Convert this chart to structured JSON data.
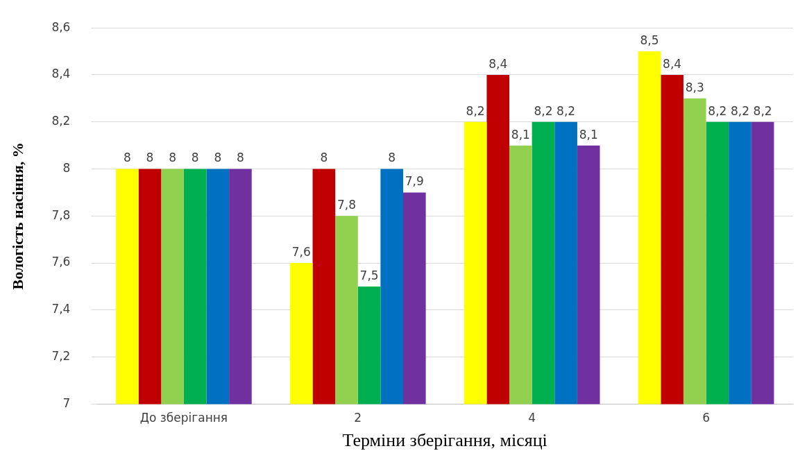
{
  "chart_data": {
    "type": "bar",
    "xlabel": "Терміни зберігання, місяці",
    "ylabel": "Вологість насіння, %",
    "categories": [
      "До зберігання",
      "2",
      "4",
      "6"
    ],
    "series": [
      {
        "color": "#ffff00",
        "values": [
          8,
          7.6,
          8.2,
          8.5
        ],
        "value_labels": [
          "8",
          "7,6",
          "8,2",
          "8,5"
        ]
      },
      {
        "color": "#c00000",
        "values": [
          8,
          8,
          8.4,
          8.4
        ],
        "value_labels": [
          "8",
          "8",
          "8,4",
          "8,4"
        ]
      },
      {
        "color": "#92d050",
        "values": [
          8,
          7.8,
          8.1,
          8.3
        ],
        "value_labels": [
          "8",
          "7,8",
          "8,1",
          "8,3"
        ]
      },
      {
        "color": "#00b050",
        "values": [
          8,
          7.5,
          8.2,
          8.2
        ],
        "value_labels": [
          "8",
          "7,5",
          "8,2",
          "8,2"
        ]
      },
      {
        "color": "#0070c0",
        "values": [
          8,
          8,
          8.2,
          8.2
        ],
        "value_labels": [
          "8",
          "8",
          "8,2",
          "8,2"
        ]
      },
      {
        "color": "#7030a0",
        "values": [
          8,
          7.9,
          8.1,
          8.2
        ],
        "value_labels": [
          "8",
          "7,9",
          "8,1",
          "8,2"
        ]
      }
    ],
    "ylim": [
      7,
      8.6
    ],
    "yticks": [
      7,
      {
        "value": 7.2,
        "label": "7,2"
      },
      {
        "value": 7.4,
        "label": "7,4"
      },
      {
        "value": 7.6,
        "label": "7,6"
      },
      {
        "value": 7.8,
        "label": "7,8"
      },
      8,
      {
        "value": 8.2,
        "label": "8,2"
      },
      {
        "value": 8.4,
        "label": "8,4"
      },
      {
        "value": 8.6,
        "label": "8,6"
      }
    ],
    "grid": "y"
  }
}
